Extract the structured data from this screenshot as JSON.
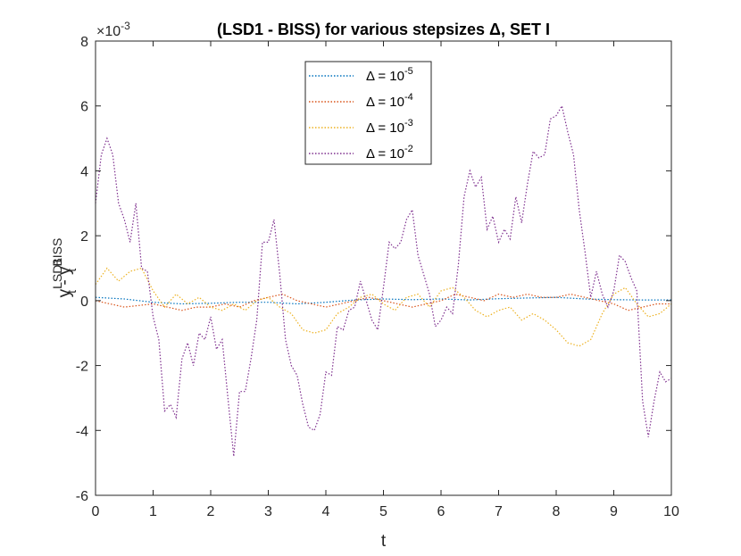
{
  "chart_data": {
    "type": "line",
    "title": "(LSD1 - BISS) for various stepsizes Δ, SET I",
    "xlabel": "t",
    "ylabel": {
      "base": "y",
      "sub": "t",
      "sup1": "LSD1",
      "minus": " - ",
      "sup2": "BISS"
    },
    "xlim": [
      0,
      10
    ],
    "ylim": [
      -0.006,
      0.008
    ],
    "y_exponent_label": {
      "prefix": "×10",
      "exp": "-3"
    },
    "xticks": [
      0,
      1,
      2,
      3,
      4,
      5,
      6,
      7,
      8,
      9,
      10
    ],
    "xtick_labels": [
      "0",
      "1",
      "2",
      "3",
      "4",
      "5",
      "6",
      "7",
      "8",
      "9",
      "10"
    ],
    "yticks": [
      -0.006,
      -0.004,
      -0.002,
      0,
      0.002,
      0.004,
      0.006,
      0.008
    ],
    "ytick_labels": [
      "-6",
      "-4",
      "-2",
      "0",
      "2",
      "4",
      "6",
      "8"
    ],
    "legend_position": "top-center",
    "series": [
      {
        "name": "Δ = 10^-5",
        "legend_base": "Δ = 10",
        "legend_exp": "-5",
        "color": "#0072BD",
        "x": [
          0,
          0.5,
          1,
          1.5,
          2,
          2.5,
          3,
          3.5,
          4,
          4.5,
          5,
          5.5,
          6,
          6.5,
          7,
          7.5,
          8,
          8.5,
          9,
          9.5,
          10
        ],
        "y": [
          0.0001,
          5e-05,
          -5e-05,
          -0.0001,
          -8e-05,
          -5e-05,
          -5e-05,
          -0.0001,
          -5e-05,
          2e-05,
          5e-05,
          3e-05,
          5e-05,
          2e-05,
          6e-05,
          8e-05,
          0.0001,
          5e-05,
          3e-05,
          2e-05,
          2e-05
        ]
      },
      {
        "name": "Δ = 10^-4",
        "legend_base": "Δ = 10",
        "legend_exp": "-4",
        "color": "#D95319",
        "x": [
          0,
          0.25,
          0.5,
          0.75,
          1,
          1.25,
          1.5,
          1.75,
          2,
          2.25,
          2.5,
          2.75,
          3,
          3.25,
          3.5,
          3.75,
          4,
          4.25,
          4.5,
          4.75,
          5,
          5.25,
          5.5,
          5.75,
          6,
          6.25,
          6.5,
          6.75,
          7,
          7.25,
          7.5,
          7.75,
          8,
          8.25,
          8.5,
          8.75,
          9,
          9.25,
          9.5,
          9.75,
          10
        ],
        "y": [
          0,
          -0.0001,
          -0.0002,
          -0.00015,
          -0.0001,
          -0.0002,
          -0.0003,
          -0.0002,
          -0.0002,
          -0.0001,
          -0.0002,
          0,
          0.0001,
          0.0002,
          0,
          -0.0001,
          -0.0002,
          -0.0001,
          0,
          0.0001,
          0,
          -0.0001,
          -0.0002,
          -0.0001,
          0,
          0.0002,
          0.0001,
          0,
          0.0002,
          0.0001,
          0.0002,
          0.0001,
          0.0001,
          0.0002,
          0.0001,
          0,
          -0.0001,
          -0.0003,
          -0.0002,
          -0.0001,
          -0.0001
        ]
      },
      {
        "name": "Δ = 10^-3",
        "legend_base": "Δ = 10",
        "legend_exp": "-3",
        "color": "#EDB120",
        "x": [
          0,
          0.2,
          0.4,
          0.6,
          0.8,
          1.0,
          1.2,
          1.4,
          1.6,
          1.8,
          2.0,
          2.2,
          2.4,
          2.6,
          2.8,
          3.0,
          3.2,
          3.4,
          3.6,
          3.8,
          4.0,
          4.2,
          4.4,
          4.6,
          4.8,
          5.0,
          5.2,
          5.4,
          5.6,
          5.8,
          6.0,
          6.2,
          6.4,
          6.6,
          6.8,
          7.0,
          7.2,
          7.4,
          7.6,
          7.8,
          8.0,
          8.2,
          8.4,
          8.6,
          8.8,
          9.0,
          9.2,
          9.4,
          9.6,
          9.8,
          10.0
        ],
        "y": [
          0.0005,
          0.001,
          0.0006,
          0.0009,
          0.001,
          0.0003,
          -0.0002,
          0.0002,
          -0.0001,
          0.0001,
          -0.0002,
          -0.0003,
          -0.0001,
          -0.0003,
          0,
          0.0001,
          -0.0002,
          -0.0004,
          -0.0009,
          -0.001,
          -0.0009,
          -0.0004,
          -0.0002,
          0.0001,
          0.0002,
          -0.0001,
          -0.0003,
          0.0001,
          0.0002,
          -0.0002,
          0.0003,
          0.0004,
          0.0001,
          -0.0003,
          -0.0005,
          -0.0003,
          -0.0002,
          -0.0006,
          -0.0004,
          -0.0006,
          -0.0009,
          -0.0013,
          -0.0014,
          -0.0012,
          -0.0004,
          0.0002,
          0.0004,
          -0.0001,
          -0.0005,
          -0.0004,
          -0.0001
        ]
      },
      {
        "name": "Δ = 10^-2",
        "legend_base": "Δ = 10",
        "legend_exp": "-2",
        "color": "#7E2F8E",
        "x": [
          0,
          0.1,
          0.2,
          0.3,
          0.4,
          0.5,
          0.6,
          0.7,
          0.8,
          0.9,
          1.0,
          1.1,
          1.2,
          1.3,
          1.4,
          1.5,
          1.6,
          1.7,
          1.8,
          1.9,
          2.0,
          2.1,
          2.2,
          2.3,
          2.4,
          2.5,
          2.6,
          2.7,
          2.8,
          2.9,
          3.0,
          3.1,
          3.2,
          3.3,
          3.4,
          3.5,
          3.6,
          3.7,
          3.8,
          3.9,
          4.0,
          4.1,
          4.2,
          4.3,
          4.4,
          4.5,
          4.6,
          4.7,
          4.8,
          4.9,
          5.0,
          5.1,
          5.2,
          5.3,
          5.4,
          5.5,
          5.6,
          5.7,
          5.8,
          5.9,
          6.0,
          6.1,
          6.2,
          6.3,
          6.4,
          6.5,
          6.6,
          6.7,
          6.8,
          6.9,
          7.0,
          7.1,
          7.2,
          7.3,
          7.4,
          7.5,
          7.6,
          7.7,
          7.8,
          7.9,
          8.0,
          8.1,
          8.2,
          8.3,
          8.4,
          8.5,
          8.6,
          8.7,
          8.8,
          8.9,
          9.0,
          9.1,
          9.2,
          9.3,
          9.4,
          9.5,
          9.6,
          9.7,
          9.8,
          9.9,
          10.0
        ],
        "y": [
          0.003,
          0.0045,
          0.005,
          0.0045,
          0.003,
          0.0025,
          0.0018,
          0.003,
          0.001,
          0.0009,
          -0.0005,
          -0.0012,
          -0.0034,
          -0.0032,
          -0.0036,
          -0.0018,
          -0.0013,
          -0.002,
          -0.001,
          -0.0012,
          -0.0005,
          -0.0015,
          -0.0012,
          -0.003,
          -0.0048,
          -0.0028,
          -0.0028,
          -0.0018,
          -0.0006,
          0.0018,
          0.0018,
          0.0025,
          0.0008,
          -0.0012,
          -0.002,
          -0.0023,
          -0.0032,
          -0.0039,
          -0.004,
          -0.0035,
          -0.0022,
          -0.0023,
          -0.0008,
          -0.0009,
          -0.0003,
          -0.0002,
          0.0006,
          0,
          -0.0006,
          -0.0009,
          0.0004,
          0.0018,
          0.0016,
          0.0018,
          0.0025,
          0.0028,
          0.0014,
          0.0008,
          0.0002,
          -0.0008,
          -0.0006,
          -0.0002,
          -0.0004,
          0.0011,
          0.0032,
          0.004,
          0.0035,
          0.0038,
          0.0022,
          0.0026,
          0.0018,
          0.0022,
          0.0019,
          0.0032,
          0.0024,
          0.0036,
          0.0046,
          0.0044,
          0.0045,
          0.0056,
          0.0057,
          0.006,
          0.0052,
          0.0045,
          0.0028,
          0.0015,
          0.0001,
          0.0009,
          0.0002,
          -0.0002,
          0.0003,
          0.0014,
          0.0012,
          0.0007,
          0.0003,
          -0.0031,
          -0.0042,
          -0.0031,
          -0.0022,
          -0.0025,
          -0.0024
        ]
      }
    ]
  }
}
